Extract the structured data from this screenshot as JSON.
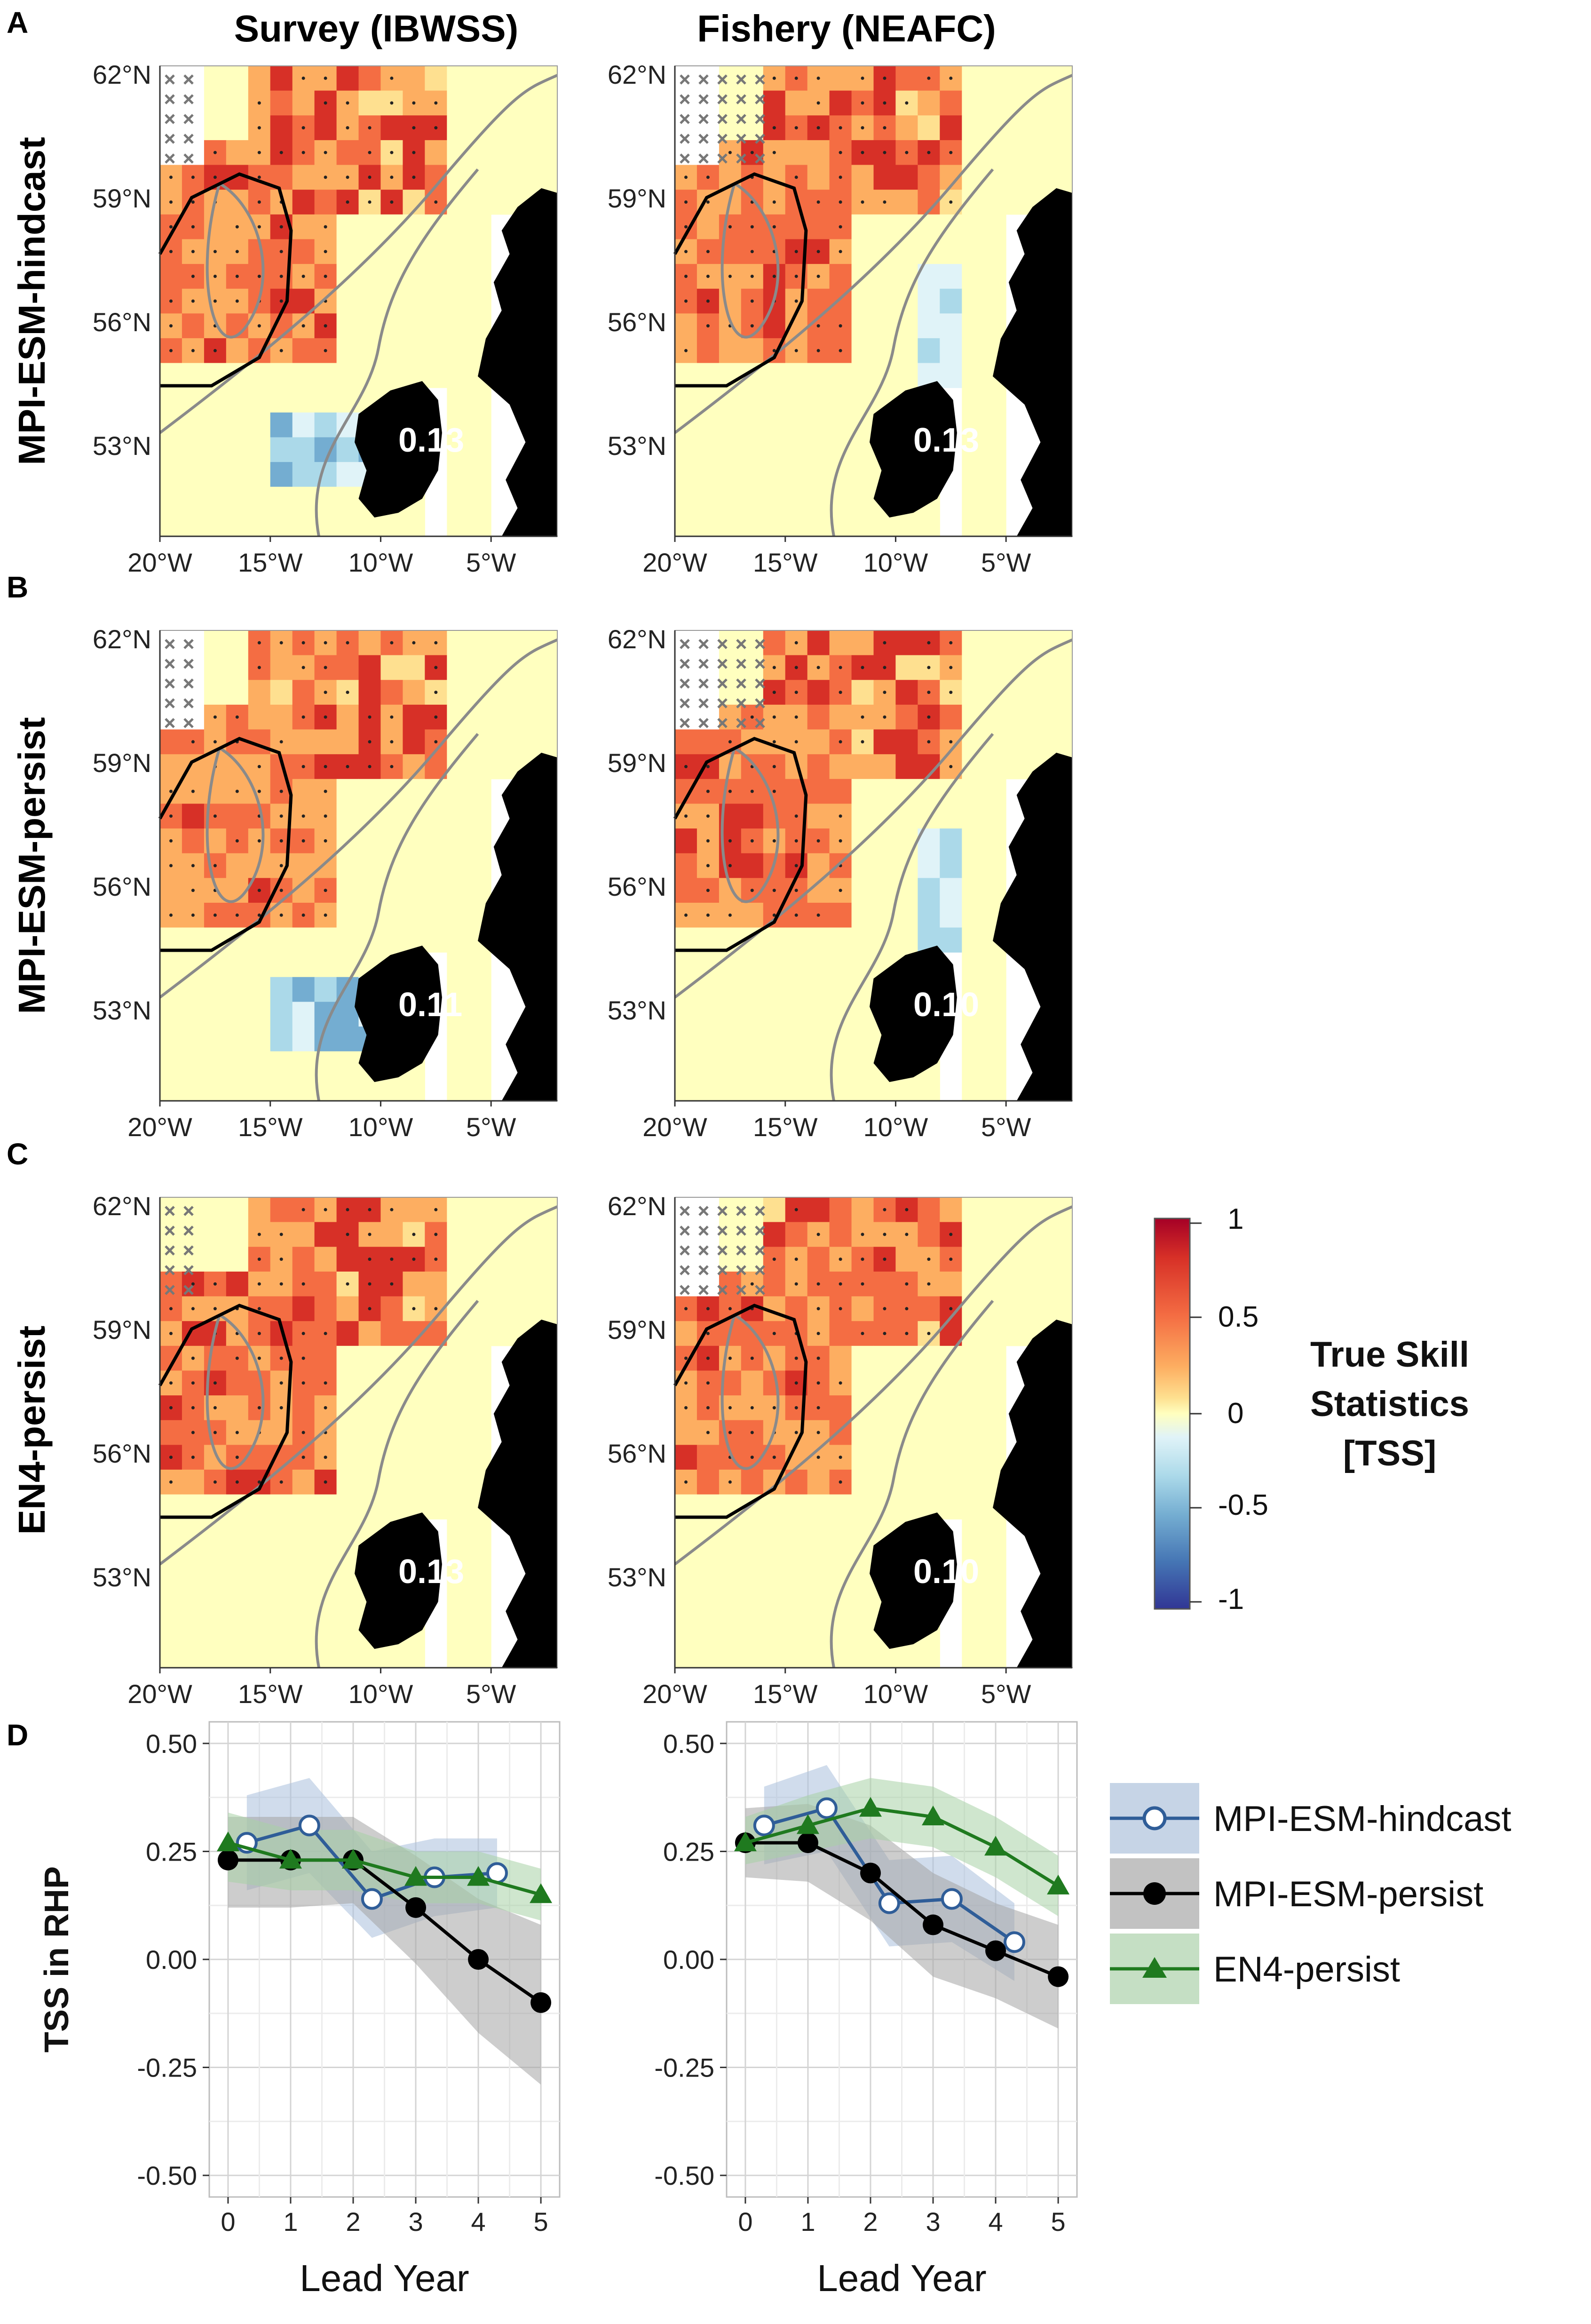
{
  "panel_letters": [
    "A",
    "B",
    "C",
    "D"
  ],
  "column_titles": [
    "Survey (IBWSS)",
    "Fishery (NEAFC)"
  ],
  "row_titles": [
    "MPI-ESM-hindcast",
    "MPI-ESM-persist",
    "EN4-persist"
  ],
  "colorbar": {
    "title_lines": [
      "True Skill",
      "Statistics",
      "[TSS]"
    ],
    "ticks": [
      "1",
      "0.5",
      "0",
      "-0.5",
      "-1"
    ],
    "colors": [
      "#a50026",
      "#d73027",
      "#f46d43",
      "#fdae61",
      "#fee090",
      "#ffffbf",
      "#e0f3f8",
      "#abd9e9",
      "#74add1",
      "#4575b4",
      "#313695"
    ]
  },
  "chart_data": [
    {
      "type": "heatmap",
      "description_key": "spatial TSS maps",
      "lat_ticks": [
        "62°N",
        "59°N",
        "56°N",
        "53°N"
      ],
      "lon_ticks": [
        "20°W",
        "15°W",
        "10°W",
        "5°W"
      ],
      "lat_range": [
        51,
        62
      ],
      "lon_range": [
        -20,
        -2
      ],
      "color_range": [
        -1,
        1
      ],
      "maps": [
        {
          "row": "MPI-ESM-hindcast",
          "column": "Survey (IBWSS)",
          "mean_tss_label": "0.13"
        },
        {
          "row": "MPI-ESM-hindcast",
          "column": "Fishery (NEAFC)",
          "mean_tss_label": "0.13"
        },
        {
          "row": "MPI-ESM-persist",
          "column": "Survey (IBWSS)",
          "mean_tss_label": "0.11"
        },
        {
          "row": "MPI-ESM-persist",
          "column": "Fishery (NEAFC)",
          "mean_tss_label": "0.10"
        },
        {
          "row": "EN4-persist",
          "column": "Survey (IBWSS)",
          "mean_tss_label": "0.13"
        },
        {
          "row": "EN4-persist",
          "column": "Fishery (NEAFC)",
          "mean_tss_label": "0.10"
        }
      ]
    },
    {
      "type": "line",
      "title": "Survey (IBWSS)",
      "xlabel": "Lead Year",
      "ylabel": "TSS in RHP",
      "xlim": [
        -0.3,
        5.3
      ],
      "ylim": [
        -0.55,
        0.55
      ],
      "xticks": [
        "0",
        "1",
        "2",
        "3",
        "4",
        "5"
      ],
      "yticks": [
        "0.50",
        "0.25",
        "0.00",
        "-0.25",
        "-0.50"
      ],
      "series": [
        {
          "name": "MPI-ESM-hindcast",
          "x": [
            0.3,
            1.3,
            2.3,
            3.3,
            4.3
          ],
          "y": [
            0.27,
            0.31,
            0.14,
            0.19,
            0.2
          ],
          "band": [
            [
              0.16,
              0.38
            ],
            [
              0.2,
              0.42
            ],
            [
              0.05,
              0.25
            ],
            [
              0.1,
              0.28
            ],
            [
              0.12,
              0.28
            ]
          ]
        },
        {
          "name": "MPI-ESM-persist",
          "x": [
            0,
            1,
            2,
            3,
            4,
            5
          ],
          "y": [
            0.23,
            0.23,
            0.23,
            0.12,
            0.0,
            -0.1
          ],
          "band": [
            [
              0.12,
              0.33
            ],
            [
              0.12,
              0.33
            ],
            [
              0.13,
              0.33
            ],
            [
              -0.01,
              0.24
            ],
            [
              -0.17,
              0.14
            ],
            [
              -0.29,
              0.08
            ]
          ]
        },
        {
          "name": "EN4-persist",
          "x": [
            0,
            1,
            2,
            3,
            4,
            5
          ],
          "y": [
            0.27,
            0.23,
            0.23,
            0.19,
            0.19,
            0.15
          ],
          "band": [
            [
              0.18,
              0.34
            ],
            [
              0.16,
              0.3
            ],
            [
              0.16,
              0.3
            ],
            [
              0.13,
              0.25
            ],
            [
              0.13,
              0.25
            ],
            [
              0.09,
              0.21
            ]
          ]
        }
      ]
    },
    {
      "type": "line",
      "title": "Fishery (NEAFC)",
      "xlabel": "Lead Year",
      "ylabel": "",
      "xlim": [
        -0.3,
        5.3
      ],
      "ylim": [
        -0.55,
        0.55
      ],
      "xticks": [
        "0",
        "1",
        "2",
        "3",
        "4",
        "5"
      ],
      "yticks": [
        "0.50",
        "0.25",
        "0.00",
        "-0.25",
        "-0.50"
      ],
      "series": [
        {
          "name": "MPI-ESM-hindcast",
          "x": [
            0.3,
            1.3,
            2.3,
            3.3,
            4.3
          ],
          "y": [
            0.31,
            0.35,
            0.13,
            0.14,
            0.04
          ],
          "band": [
            [
              0.22,
              0.4
            ],
            [
              0.25,
              0.45
            ],
            [
              0.03,
              0.23
            ],
            [
              0.04,
              0.24
            ],
            [
              -0.05,
              0.13
            ]
          ]
        },
        {
          "name": "MPI-ESM-persist",
          "x": [
            0,
            1,
            2,
            3,
            4,
            5
          ],
          "y": [
            0.27,
            0.27,
            0.2,
            0.08,
            0.02,
            -0.04
          ],
          "band": [
            [
              0.19,
              0.35
            ],
            [
              0.18,
              0.36
            ],
            [
              0.09,
              0.31
            ],
            [
              -0.04,
              0.2
            ],
            [
              -0.09,
              0.13
            ],
            [
              -0.16,
              0.08
            ]
          ]
        },
        {
          "name": "EN4-persist",
          "x": [
            0,
            1,
            2,
            3,
            4,
            5
          ],
          "y": [
            0.27,
            0.31,
            0.35,
            0.33,
            0.26,
            0.17
          ],
          "band": [
            [
              0.22,
              0.33
            ],
            [
              0.25,
              0.38
            ],
            [
              0.28,
              0.42
            ],
            [
              0.26,
              0.4
            ],
            [
              0.19,
              0.33
            ],
            [
              0.1,
              0.24
            ]
          ]
        }
      ]
    }
  ],
  "legend": {
    "entries": [
      "MPI-ESM-hindcast",
      "MPI-ESM-persist",
      "EN4-persist"
    ],
    "colors": {
      "MPI-ESM-hindcast": "#2f5d98",
      "MPI-ESM-persist": "#000000",
      "EN4-persist": "#1f7a1f"
    },
    "band_colors": {
      "MPI-ESM-hindcast": "#c6d4e6",
      "MPI-ESM-persist": "#c2c2c2",
      "EN4-persist": "#c5dfc4"
    }
  }
}
